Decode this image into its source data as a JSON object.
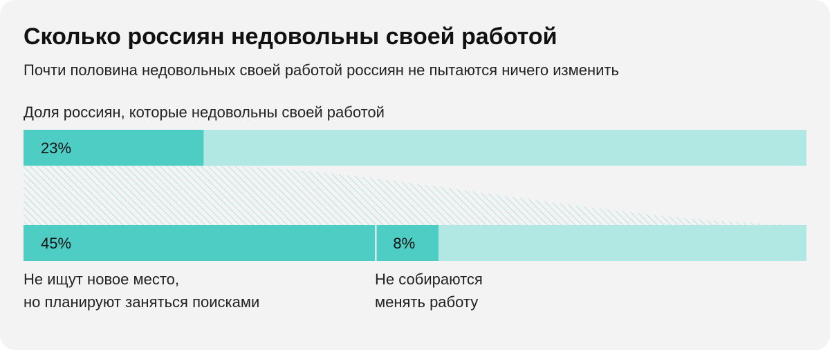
{
  "title": "Сколько россиян недовольны своей работой",
  "subtitle": "Почти половина недовольных своей работой россиян не пытаются ничего изменить",
  "colors": {
    "background": "#f3f3f3",
    "accent": "#4ecdc4",
    "track": "#b2e8e3",
    "hatch": "#9adcd5"
  },
  "chart_data": {
    "type": "bar",
    "title": "Сколько россиян недовольны своей работой",
    "subtitle": "Почти половина недовольных своей работой россиян не пытаются ничего изменить",
    "unit": "%",
    "bars": [
      {
        "label": "Доля россиян, которые недовольны своей работой",
        "total": 100,
        "segments": [
          {
            "value": 23,
            "text": "23%"
          }
        ]
      },
      {
        "label": "",
        "total": 100,
        "segments": [
          {
            "value": 45,
            "text": "45%",
            "category": "Не ищут новое место,\nно планируют заняться поисками"
          },
          {
            "value": 8,
            "text": "8%",
            "category": "Не собираются\nменять работу"
          }
        ]
      }
    ]
  }
}
